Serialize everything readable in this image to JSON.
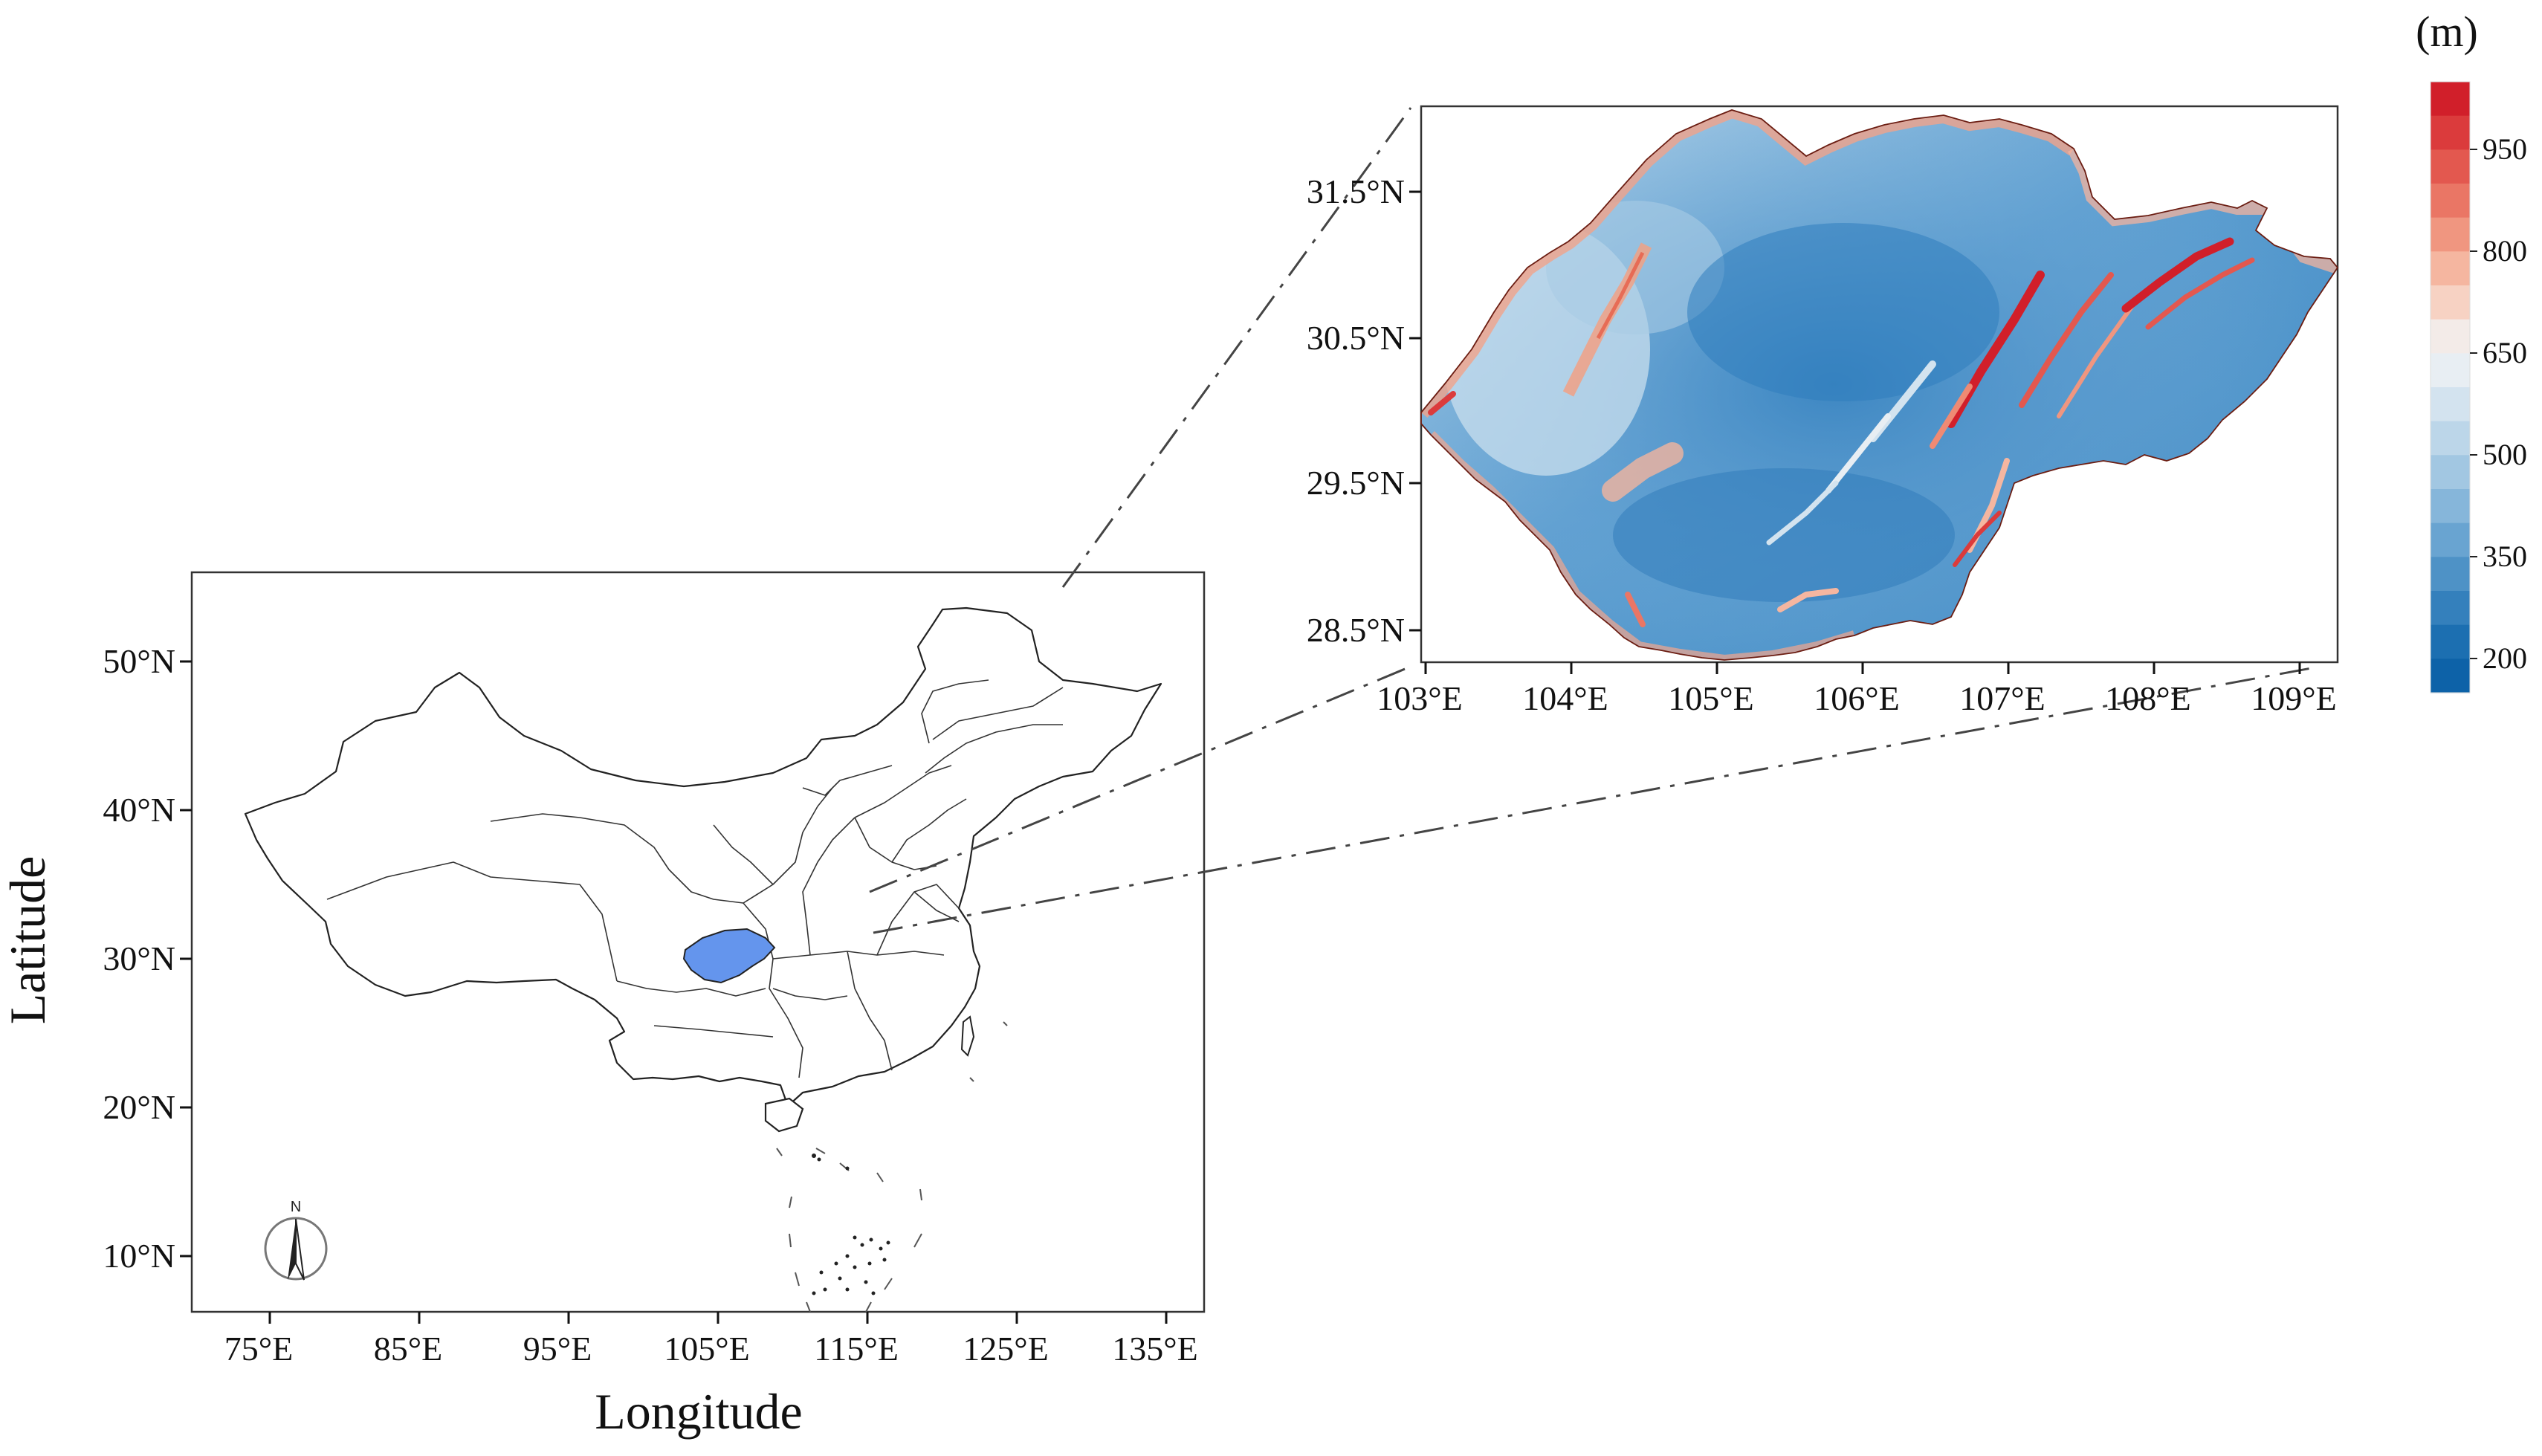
{
  "left_map": {
    "xlabel": "Longitude",
    "ylabel": "Latitude",
    "x_ticks": [
      "75°E",
      "85°E",
      "95°E",
      "105°E",
      "115°E",
      "125°E",
      "135°E"
    ],
    "y_ticks": [
      "50°N",
      "40°N",
      "30°N",
      "20°N",
      "10°N"
    ],
    "compass_label": "N",
    "highlight_color": "#6495ED"
  },
  "inset_map": {
    "x_ticks": [
      "103°E",
      "104°E",
      "105°E",
      "106°E",
      "107°E",
      "108°E",
      "109°E"
    ],
    "y_ticks": [
      "31.5°N",
      "30.5°N",
      "29.5°N",
      "28.5°N"
    ]
  },
  "colorbar": {
    "unit": "(m)",
    "ticks": [
      "950",
      "800",
      "650",
      "500",
      "350",
      "200"
    ],
    "colors": [
      "#d11f2a",
      "#db3b3c",
      "#e3584f",
      "#ea7665",
      "#f09680",
      "#f5b6a0",
      "#f7d2c3",
      "#f3ebe8",
      "#e8eef3",
      "#d3e3ef",
      "#bcd6e9",
      "#a2c7e2",
      "#86b6da",
      "#69a4d1",
      "#4e92c6",
      "#3480bc",
      "#1c6fb1",
      "#0d62a8"
    ]
  }
}
